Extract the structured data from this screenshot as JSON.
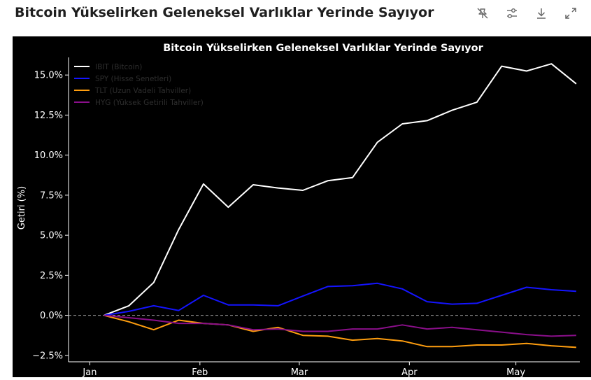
{
  "page": {
    "title": "Bitcoin Yükselirken Geleneksel Varlıklar Yerinde Sayıyor"
  },
  "toolbar": {
    "icons": [
      "pin-off-icon",
      "sliders-icon",
      "download-icon",
      "expand-icon"
    ]
  },
  "chart_data": {
    "type": "line",
    "title": "Bitcoin Yükselirken Geleneksel Varlıklar Yerinde Sayıyor",
    "xlabel": "",
    "ylabel": "Getiri (%)",
    "ylim": [
      -2.9,
      16.1
    ],
    "y_ticks": [
      -2.5,
      0,
      2.5,
      5,
      7.5,
      10,
      12.5,
      15
    ],
    "y_tick_labels": [
      "−2.5%",
      "0.0%",
      "2.5%",
      "5.0%",
      "7.5%",
      "10.0%",
      "12.5%",
      "15.0%"
    ],
    "x_tick_labels": [
      "Jan",
      "Feb",
      "Mar",
      "Apr",
      "May"
    ],
    "x_tick_positions": [
      0,
      31,
      59,
      90,
      120
    ],
    "x_range": [
      -6,
      138
    ],
    "x": [
      4,
      11,
      18,
      25,
      32,
      39,
      46,
      53,
      60,
      67,
      74,
      81,
      88,
      95,
      102,
      109,
      116,
      123,
      130,
      137
    ],
    "zero_line": true,
    "grid": false,
    "legend_position": "top-left",
    "series": [
      {
        "name": "IBIT (Bitcoin)",
        "color": "#ffffff",
        "values": [
          0.0,
          0.6,
          2.05,
          5.35,
          8.2,
          6.75,
          8.15,
          7.95,
          7.8,
          8.4,
          8.6,
          10.8,
          11.95,
          12.15,
          12.8,
          13.3,
          15.55,
          15.25,
          15.7,
          14.45
        ]
      },
      {
        "name": "SPY (Hisse Senetleri)",
        "color": "#1414ff",
        "values": [
          0.0,
          0.25,
          0.6,
          0.3,
          1.25,
          0.65,
          0.65,
          0.6,
          1.2,
          1.8,
          1.85,
          2.0,
          1.65,
          0.85,
          0.7,
          0.75,
          1.25,
          1.75,
          1.6,
          1.5
        ]
      },
      {
        "name": "TLT (Uzun Vadeli Tahviller)",
        "color": "#ff9e0f",
        "values": [
          0.0,
          -0.4,
          -0.9,
          -0.3,
          -0.5,
          -0.6,
          -1.0,
          -0.75,
          -1.25,
          -1.3,
          -1.55,
          -1.45,
          -1.6,
          -1.95,
          -1.95,
          -1.85,
          -1.85,
          -1.75,
          -1.9,
          -2.0
        ]
      },
      {
        "name": "HYG (Yüksek Getirili Tahviller)",
        "color": "#8a0f8a",
        "values": [
          0.0,
          -0.15,
          -0.3,
          -0.5,
          -0.5,
          -0.6,
          -0.9,
          -0.85,
          -1.0,
          -1.0,
          -0.85,
          -0.85,
          -0.6,
          -0.85,
          -0.75,
          -0.9,
          -1.05,
          -1.2,
          -1.3,
          -1.25
        ]
      }
    ]
  }
}
